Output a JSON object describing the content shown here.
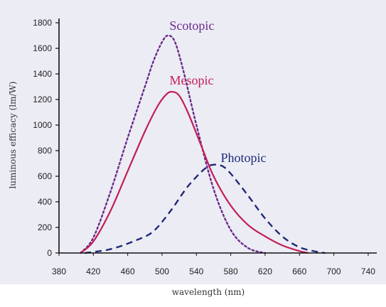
{
  "chart_data": {
    "type": "line",
    "title": "",
    "xlabel": "wavelength (nm)",
    "ylabel": "luminous efficacy (lm/W)",
    "xlim": [
      380,
      750
    ],
    "ylim": [
      0,
      1800
    ],
    "xticks": [
      380,
      420,
      460,
      500,
      540,
      580,
      620,
      660,
      700,
      740
    ],
    "yticks": [
      0,
      200,
      400,
      600,
      800,
      1000,
      1200,
      1400,
      1600,
      1800
    ],
    "grid": false,
    "legend": "labels placed next to curves",
    "series": [
      {
        "name": "Scotopic",
        "style": "dotted",
        "color": "#6a2a8c",
        "x": [
          405,
          420,
          440,
          460,
          480,
          490,
          500,
          507,
          515,
          525,
          540,
          560,
          580,
          600,
          620
        ],
        "y": [
          0,
          120,
          480,
          900,
          1300,
          1500,
          1650,
          1700,
          1650,
          1420,
          1000,
          500,
          180,
          40,
          0
        ]
      },
      {
        "name": "Mesopic",
        "style": "solid",
        "color": "#c21d57",
        "x": [
          405,
          420,
          440,
          460,
          480,
          495,
          505,
          512,
          520,
          530,
          545,
          560,
          580,
          600,
          620,
          640,
          660,
          670
        ],
        "y": [
          0,
          90,
          330,
          640,
          950,
          1150,
          1240,
          1260,
          1230,
          1100,
          850,
          600,
          370,
          220,
          130,
          60,
          15,
          0
        ]
      },
      {
        "name": "Photopic",
        "style": "dashed",
        "color": "#1f2a78",
        "x": [
          410,
          440,
          470,
          490,
          510,
          530,
          550,
          560,
          570,
          580,
          600,
          620,
          640,
          660,
          680,
          690
        ],
        "y": [
          0,
          30,
          100,
          170,
          330,
          520,
          660,
          690,
          680,
          620,
          450,
          270,
          130,
          45,
          10,
          0
        ]
      }
    ]
  }
}
